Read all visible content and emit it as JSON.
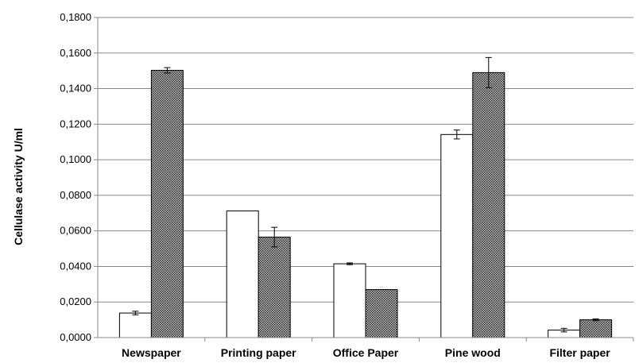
{
  "chart_data": {
    "type": "bar",
    "title": "",
    "xlabel": "",
    "ylabel": "Cellulase activity U/ml",
    "ylim": [
      0,
      0.18
    ],
    "yticks": [
      "0,0000",
      "0,0200",
      "0,0400",
      "0,0600",
      "0,0800",
      "0,1000",
      "0,1200",
      "0,1400",
      "0,1600",
      "0,1800"
    ],
    "categories": [
      "Newspaper",
      "Printing paper",
      "Office Paper",
      "Pine wood",
      "Filter paper"
    ],
    "grid": true,
    "legend": "none",
    "series": [
      {
        "fill": "#ffffff",
        "pattern": "none",
        "values": [
          0.0138,
          0.0712,
          0.0415,
          0.1142,
          0.0042
        ],
        "errors": [
          0.001,
          0.0,
          0.0005,
          0.0025,
          0.001
        ]
      },
      {
        "fill": "#7a7a7a",
        "pattern": "crosshatch",
        "values": [
          0.1503,
          0.0565,
          0.027,
          0.149,
          0.01
        ],
        "errors": [
          0.0015,
          0.0055,
          0.0,
          0.0085,
          0.0005
        ]
      }
    ]
  }
}
